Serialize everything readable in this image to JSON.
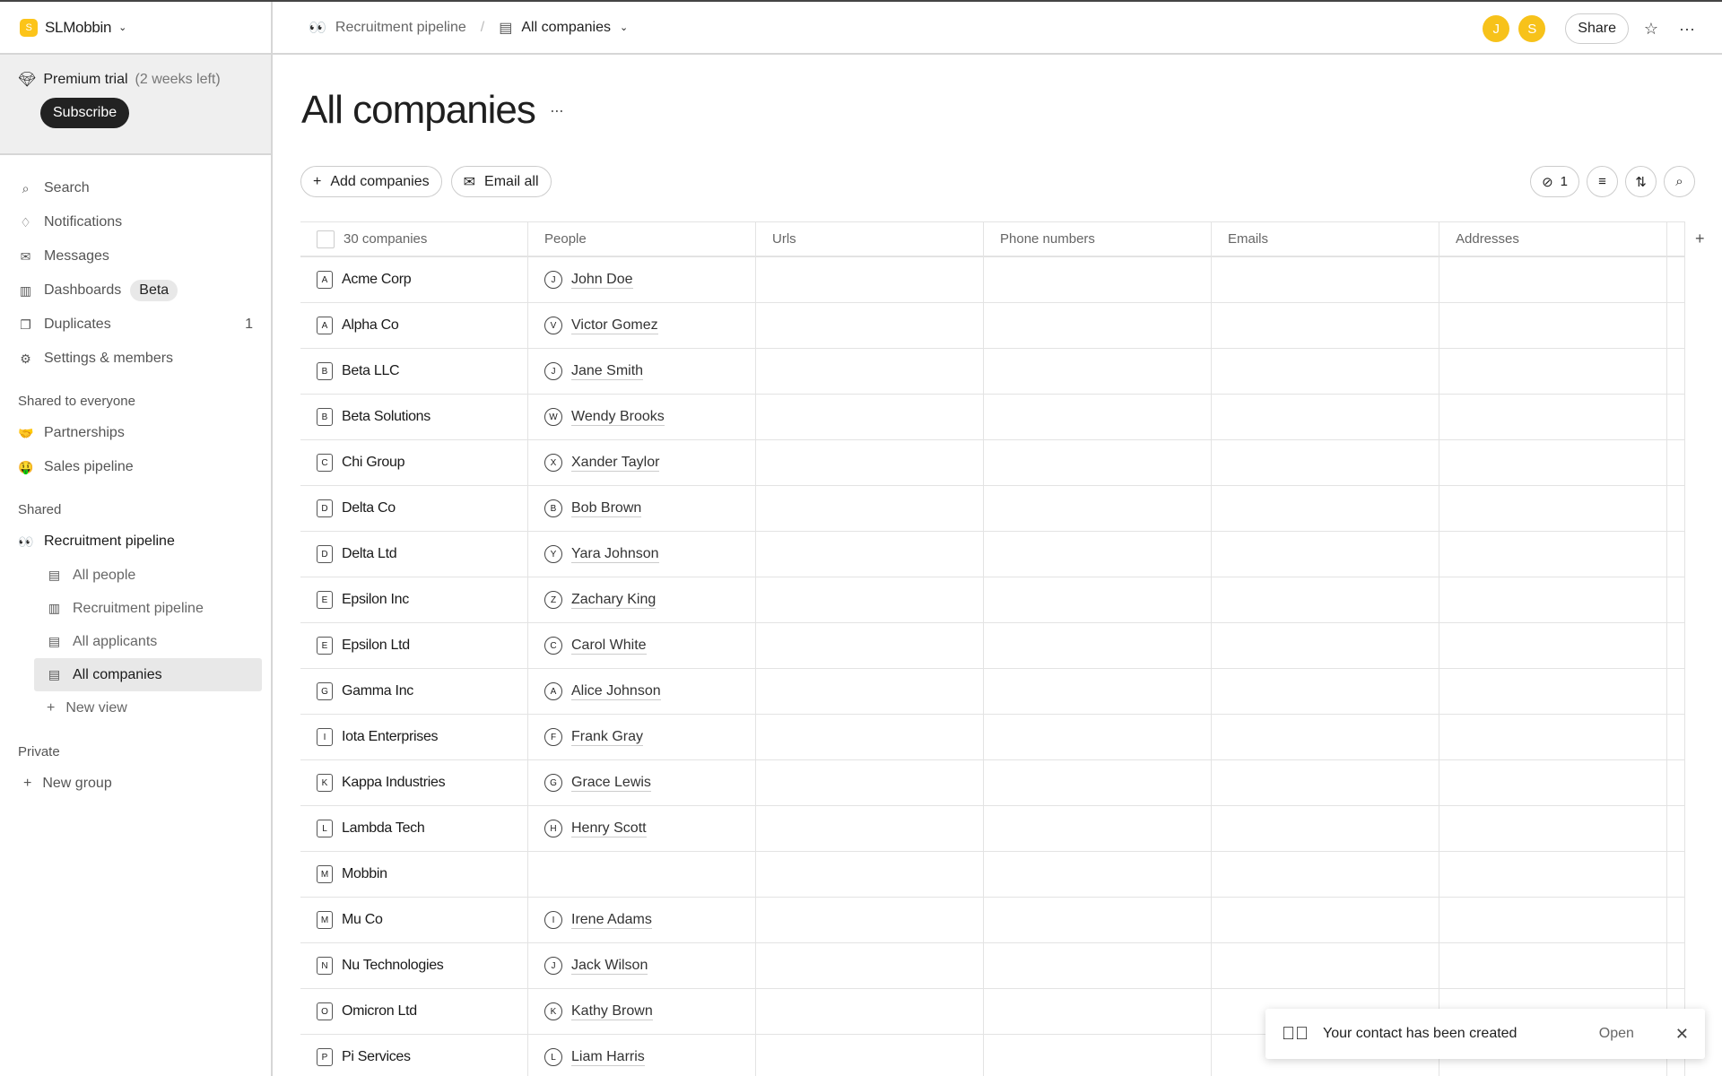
{
  "workspace": {
    "logo_letter": "S",
    "name": "SLMobbin"
  },
  "premium": {
    "label": "Premium trial",
    "remaining": "(2 weeks left)",
    "subscribe": "Subscribe"
  },
  "nav": [
    {
      "icon": "search-icon",
      "glyph": "⌕",
      "label": "Search"
    },
    {
      "icon": "bell-icon",
      "glyph": "♢",
      "label": "Notifications"
    },
    {
      "icon": "mail-icon",
      "glyph": "✉",
      "label": "Messages"
    },
    {
      "icon": "chart-icon",
      "glyph": "▥",
      "label": "Dashboards",
      "badge": "Beta"
    },
    {
      "icon": "copy-icon",
      "glyph": "❐",
      "label": "Duplicates",
      "count": "1"
    },
    {
      "icon": "gear-icon",
      "glyph": "⚙",
      "label": "Settings & members"
    }
  ],
  "sections": {
    "shared_everyone": {
      "title": "Shared to everyone",
      "items": [
        {
          "emoji": "🤝",
          "label": "Partnerships"
        },
        {
          "emoji": "🤑",
          "label": "Sales pipeline"
        }
      ]
    },
    "shared": {
      "title": "Shared",
      "group": {
        "emoji": "👀",
        "label": "Recruitment pipeline"
      },
      "views": [
        {
          "label": "All people",
          "glyph": "▤"
        },
        {
          "label": "Recruitment pipeline",
          "glyph": "▥"
        },
        {
          "label": "All applicants",
          "glyph": "▤"
        },
        {
          "label": "All companies",
          "glyph": "▤",
          "active": true
        }
      ],
      "new_view": "New view"
    },
    "private": {
      "title": "Private",
      "new_group": "New group"
    }
  },
  "breadcrumb": {
    "parent_emoji": "👀",
    "parent": "Recruitment pipeline",
    "sep": "/",
    "current": "All companies"
  },
  "header": {
    "avatars": [
      "J",
      "S"
    ],
    "share": "Share"
  },
  "page": {
    "title": "All companies",
    "add": "Add companies",
    "email": "Email all",
    "hidden_count": "1"
  },
  "table": {
    "columns": [
      "30 companies",
      "People",
      "Urls",
      "Phone numbers",
      "Emails",
      "Addresses"
    ],
    "rows": [
      {
        "l": "A",
        "c": "Acme Corp",
        "pi": "J",
        "p": "John Doe"
      },
      {
        "l": "A",
        "c": "Alpha Co",
        "pi": "V",
        "p": "Victor Gomez"
      },
      {
        "l": "B",
        "c": "Beta LLC",
        "pi": "J",
        "p": "Jane Smith"
      },
      {
        "l": "B",
        "c": "Beta Solutions",
        "pi": "W",
        "p": "Wendy Brooks"
      },
      {
        "l": "C",
        "c": "Chi Group",
        "pi": "X",
        "p": "Xander Taylor"
      },
      {
        "l": "D",
        "c": "Delta Co",
        "pi": "B",
        "p": "Bob Brown"
      },
      {
        "l": "D",
        "c": "Delta Ltd",
        "pi": "Y",
        "p": "Yara Johnson"
      },
      {
        "l": "E",
        "c": "Epsilon Inc",
        "pi": "Z",
        "p": "Zachary King"
      },
      {
        "l": "E",
        "c": "Epsilon Ltd",
        "pi": "C",
        "p": "Carol White"
      },
      {
        "l": "G",
        "c": "Gamma Inc",
        "pi": "A",
        "p": "Alice Johnson"
      },
      {
        "l": "I",
        "c": "Iota Enterprises",
        "pi": "F",
        "p": "Frank Gray"
      },
      {
        "l": "K",
        "c": "Kappa Industries",
        "pi": "G",
        "p": "Grace Lewis"
      },
      {
        "l": "L",
        "c": "Lambda Tech",
        "pi": "H",
        "p": "Henry Scott"
      },
      {
        "l": "M",
        "c": "Mobbin",
        "pi": "",
        "p": ""
      },
      {
        "l": "M",
        "c": "Mu Co",
        "pi": "I",
        "p": "Irene Adams"
      },
      {
        "l": "N",
        "c": "Nu Technologies",
        "pi": "J",
        "p": "Jack Wilson"
      },
      {
        "l": "O",
        "c": "Omicron Ltd",
        "pi": "K",
        "p": "Kathy Brown"
      },
      {
        "l": "P",
        "c": "Pi Services",
        "pi": "L",
        "p": "Liam Harris"
      }
    ]
  },
  "toast": {
    "message": "Your contact has been created",
    "open": "Open"
  }
}
